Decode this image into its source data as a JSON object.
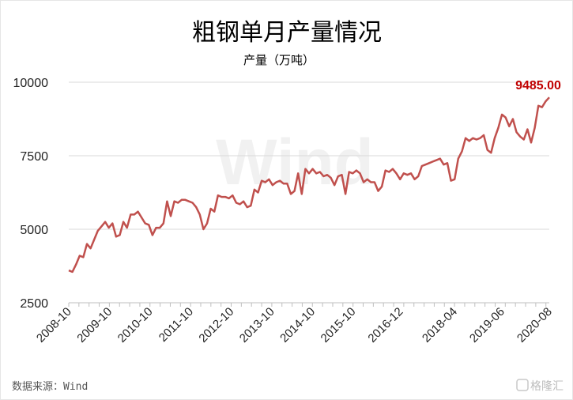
{
  "chart_data": {
    "type": "line",
    "title": "粗钢单月产量情况",
    "subtitle": "产量（万吨）",
    "ylim": [
      2500,
      10000
    ],
    "yticks": [
      "10000",
      "7500",
      "5000",
      "2500"
    ],
    "ytick_values": [
      10000,
      7500,
      5000,
      2500
    ],
    "grid": "horizontal",
    "x_tick_labels": [
      "2008-10",
      "2009-10",
      "2010-10",
      "2011-10",
      "2012-10",
      "2013-10",
      "2014-10",
      "2015-10",
      "2016-12",
      "2018-04",
      "2019-06",
      "2020-08"
    ],
    "x_tick_dates": [
      "2008-10",
      "2009-10",
      "2010-10",
      "2011-10",
      "2012-10",
      "2013-10",
      "2014-10",
      "2015-10",
      "2016-12",
      "2018-04",
      "2019-06",
      "2020-08"
    ],
    "x_start": "2008-10",
    "x_end": "2020-08",
    "line_color": "#c0504d",
    "series": [
      {
        "values": [
          3600,
          3550,
          3800,
          4100,
          4050,
          4500,
          4350,
          4650,
          4950,
          5100,
          5250,
          5050,
          5200,
          4750,
          4800,
          5250,
          5050,
          5500,
          5500,
          5600,
          5400,
          5200,
          5150,
          4800,
          5050,
          5050,
          5200,
          5950,
          5450,
          5950,
          5900,
          6000,
          6000,
          5950,
          5900,
          5750,
          5500,
          5000,
          5200,
          5700,
          5600,
          6150,
          6100,
          6100,
          6050,
          6150,
          5900,
          5850,
          5950,
          5750,
          5800,
          6350,
          6250,
          6650,
          6600,
          6700,
          6500,
          6600,
          6650,
          6550,
          6550,
          6200,
          6300,
          6900,
          6200,
          7050,
          6900,
          7050,
          6900,
          6950,
          6800,
          6850,
          6750,
          6500,
          6800,
          6850,
          6200,
          6950,
          6900,
          7000,
          6900,
          6600,
          6700,
          6600,
          6600,
          6300,
          6450,
          7000,
          6950,
          7050,
          6900,
          6700,
          6900,
          6850,
          6900,
          6700,
          6800,
          7150,
          7200,
          7250,
          7300,
          7350,
          7400,
          7200,
          7250,
          6650,
          6700,
          7400,
          7650,
          8100,
          8000,
          8100,
          8050,
          8100,
          8200,
          7700,
          7600,
          8100,
          8450,
          8900,
          8800,
          8500,
          8750,
          8300,
          8150,
          8050,
          8400,
          7950,
          8450,
          9200,
          9150,
          9350,
          9485
        ]
      }
    ],
    "annotation": "9485.00"
  },
  "footer": {
    "source": "数据来源：Wind",
    "watermark": "Wind",
    "brand": "格隆汇"
  }
}
